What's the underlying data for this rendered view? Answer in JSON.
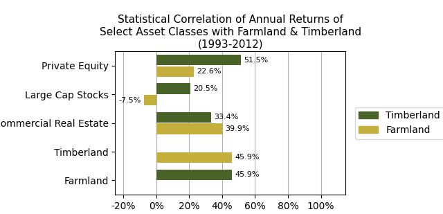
{
  "chart_data": {
    "type": "bar",
    "orientation": "horizontal",
    "title": "Statistical Correlation of Annual Returns of\nSelect Asset Classes with Farmland & Timberland\n(1993-2012)",
    "categories": [
      "Private Equity",
      "Large Cap Stocks",
      "Commercial Real Estate",
      "Timberland",
      "Farmland"
    ],
    "series": [
      {
        "name": "Timberland",
        "color": "#4A6328",
        "values": [
          51.5,
          20.5,
          33.4,
          null,
          45.9
        ],
        "value_labels": [
          "51.5%",
          "20.5%",
          "33.4%",
          null,
          "45.9%"
        ]
      },
      {
        "name": "Farmland",
        "color": "#C4AF3D",
        "values": [
          22.6,
          -7.5,
          39.9,
          45.9,
          null
        ],
        "value_labels": [
          "22.6%",
          "-7.5%",
          "39.9%",
          "45.9%",
          null
        ]
      }
    ],
    "xlim": [
      -25,
      115
    ],
    "xticks": [
      {
        "value": -20,
        "label": "-20%"
      },
      {
        "value": 0,
        "label": "0%"
      },
      {
        "value": 20,
        "label": "20%"
      },
      {
        "value": 40,
        "label": "40%"
      },
      {
        "value": 60,
        "label": "60%"
      },
      {
        "value": 80,
        "label": "80%"
      },
      {
        "value": 100,
        "label": "100%"
      }
    ],
    "grid": true,
    "legend": "center left",
    "data_labels": true
  }
}
